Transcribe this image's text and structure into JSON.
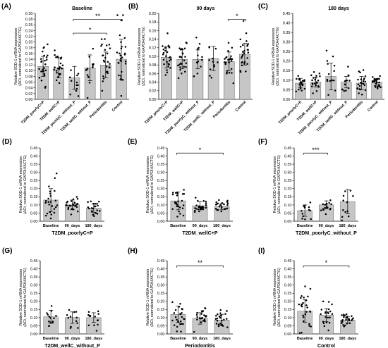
{
  "chart_data": [
    {
      "panel": "(A)",
      "title": "Baseline",
      "type": "bar",
      "ylabel": "Relative SOD-1 mRNA expression\n(ΔCt, normalized to GAPDH/ACTG)",
      "ylim": [
        0,
        0.3
      ],
      "yticks": [
        "0.00",
        "0.02",
        "0.04",
        "0.06",
        "0.08",
        "0.10",
        "0.12",
        "0.14",
        "0.16",
        "0.18",
        "0.20",
        "0.22",
        "0.24",
        "0.26",
        "0.28",
        "0.30"
      ],
      "categories": [
        "T2DM_poorlyC+P",
        "T2DM_wellC+P",
        "T2DM_poorlyC_without_P",
        "T2DM_wellC_without_P",
        "Periodontitis",
        "Control"
      ],
      "values": [
        0.115,
        0.11,
        0.075,
        0.11,
        0.12,
        0.14
      ],
      "errors": [
        0.035,
        0.035,
        0.04,
        0.045,
        0.045,
        0.07
      ],
      "n_points": [
        26,
        26,
        12,
        14,
        26,
        30
      ],
      "label_style": "rotated",
      "significance": [
        {
          "from": 2,
          "to": 5,
          "label": "**"
        },
        {
          "from": 2,
          "to": 4,
          "label": "*"
        }
      ]
    },
    {
      "panel": "(B)",
      "title": "90 days",
      "type": "bar",
      "ylabel": "Relative SOD-1 mRNA expression\n(ΔCt, normalized to GAPDH/ACTG)",
      "ylim": [
        0,
        0.2
      ],
      "yticks": [
        "0.00",
        "0.02",
        "0.04",
        "0.06",
        "0.08",
        "0.10",
        "0.12",
        "0.14",
        "0.16",
        "0.18",
        "0.20"
      ],
      "categories": [
        "T2DM_poorlyC+P",
        "T2DM_wellC+P",
        "T2DM_poorlyC_without_P",
        "T2DM_wellC_without_P",
        "Periodontitis",
        "Control"
      ],
      "values": [
        0.098,
        0.093,
        0.093,
        0.095,
        0.088,
        0.105
      ],
      "errors": [
        0.025,
        0.022,
        0.022,
        0.028,
        0.022,
        0.025
      ],
      "n_points": [
        26,
        26,
        14,
        12,
        26,
        28
      ],
      "label_style": "rotated",
      "significance": [
        {
          "from": 4,
          "to": 5,
          "label": "*"
        }
      ]
    },
    {
      "panel": "(C)",
      "title": "180 days",
      "type": "bar",
      "ylabel": "Relative SOD-1 mRNA expression\n(ΔCt, normalized to GAPDH/ACTG)",
      "ylim": [
        0,
        0.45
      ],
      "yticks": [
        "0.00",
        "0.05",
        "0.10",
        "0.15",
        "0.20",
        "0.25",
        "0.30",
        "0.35",
        "0.40",
        "0.45"
      ],
      "categories": [
        "T2DM_poorlyC+P",
        "T2DM_wellC+P",
        "T2DM_poorlyC_without_P",
        "T2DM_wellC_without_P",
        "Periodontitis",
        "Control"
      ],
      "values": [
        0.085,
        0.09,
        0.12,
        0.09,
        0.085,
        0.09
      ],
      "errors": [
        0.025,
        0.025,
        0.07,
        0.03,
        0.035,
        0.02
      ],
      "n_points": [
        24,
        22,
        14,
        14,
        24,
        26
      ],
      "label_style": "rotated",
      "significance": []
    },
    {
      "panel": "(D)",
      "title": "",
      "type": "bar",
      "ylabel": "Relative SOD-1 mRNA expression\n(ΔCt, normalized to GAPDH/ACTG)",
      "ylim": [
        0,
        0.45
      ],
      "yticks": [
        "0.00",
        "0.05",
        "0.10",
        "0.15",
        "0.20",
        "0.25",
        "0.30",
        "0.35",
        "0.40",
        "0.45"
      ],
      "categories": [
        "Baseline",
        "90_days",
        "180_days"
      ],
      "values": [
        0.13,
        0.1,
        0.08
      ],
      "errors": [
        0.07,
        0.03,
        0.025
      ],
      "n_points": [
        26,
        26,
        24
      ],
      "label_style": "flat",
      "group_label": "T2DM_poorlyC+P",
      "significance": []
    },
    {
      "panel": "(E)",
      "title": "",
      "type": "bar",
      "ylabel": "Relative SOD-1 mRNA expression\n(ΔCt, normalized to GAPDH/ACTG)",
      "ylim": [
        0,
        0.45
      ],
      "yticks": [
        "0.00",
        "0.05",
        "0.10",
        "0.15",
        "0.20",
        "0.25",
        "0.30",
        "0.35",
        "0.40",
        "0.45"
      ],
      "categories": [
        "Baseline",
        "90_days",
        "180_days"
      ],
      "values": [
        0.125,
        0.095,
        0.09
      ],
      "errors": [
        0.055,
        0.025,
        0.02
      ],
      "n_points": [
        26,
        26,
        22
      ],
      "label_style": "flat",
      "group_label": "T2DM_wellC+P",
      "significance": [
        {
          "from": 0,
          "to": 2,
          "label": "*"
        }
      ]
    },
    {
      "panel": "(F)",
      "title": "",
      "type": "bar",
      "ylabel": "Relative SOD-1 mRNA expression\n(ΔCt, normalized to GAPDH/ACTG)",
      "ylim": [
        0,
        0.45
      ],
      "yticks": [
        "0.00",
        "0.05",
        "0.10",
        "0.15",
        "0.20",
        "0.25",
        "0.30",
        "0.35",
        "0.40",
        "0.45"
      ],
      "categories": [
        "Baseline",
        "90_days",
        "180_days"
      ],
      "values": [
        0.065,
        0.1,
        0.12
      ],
      "errors": [
        0.035,
        0.025,
        0.075
      ],
      "n_points": [
        14,
        16,
        12
      ],
      "label_style": "flat",
      "group_label": "T2DM_poorlyC_without_P",
      "significance": [
        {
          "from": 0,
          "to": 1,
          "label": "***"
        }
      ]
    },
    {
      "panel": "(G)",
      "title": "",
      "type": "bar",
      "ylabel": "Relative SOD-1 mRNA expression\n(ΔCt, normalized to GAPDH/ACTG)",
      "ylim": [
        0,
        0.45
      ],
      "yticks": [
        "0.00",
        "0.05",
        "0.10",
        "0.15",
        "0.20",
        "0.25",
        "0.30",
        "0.35",
        "0.40",
        "0.45"
      ],
      "categories": [
        "Baseline",
        "90_days",
        "180_days"
      ],
      "values": [
        0.105,
        0.1,
        0.1
      ],
      "errors": [
        0.04,
        0.035,
        0.03
      ],
      "n_points": [
        14,
        12,
        14
      ],
      "label_style": "flat",
      "group_label": "T2DM_wellC_without_P",
      "significance": []
    },
    {
      "panel": "(H)",
      "title": "",
      "type": "bar",
      "ylabel": "Relative SOD-1 mRNA expression\n(ΔCt, normalized to GAPDH/ACTG)",
      "ylim": [
        0,
        0.45
      ],
      "yticks": [
        "0.00",
        "0.05",
        "0.10",
        "0.15",
        "0.20",
        "0.25",
        "0.30",
        "0.35",
        "0.40",
        "0.45"
      ],
      "categories": [
        "Baseline",
        "90_days",
        "180_days"
      ],
      "values": [
        0.12,
        0.095,
        0.085
      ],
      "errors": [
        0.05,
        0.035,
        0.035
      ],
      "n_points": [
        26,
        26,
        24
      ],
      "label_style": "flat",
      "group_label": "Periodontitis",
      "significance": [
        {
          "from": 0,
          "to": 2,
          "label": "**"
        }
      ]
    },
    {
      "panel": "(I)",
      "title": "",
      "type": "bar",
      "ylabel": "Relative SOD-1 mRNA expression\n(ΔCt, normalized to GAPDH/ACTG)",
      "ylim": [
        0,
        0.45
      ],
      "yticks": [
        "0.00",
        "0.05",
        "0.10",
        "0.15",
        "0.20",
        "0.25",
        "0.30",
        "0.35",
        "0.40",
        "0.45"
      ],
      "categories": [
        "Baseline",
        "90_days",
        "180_days"
      ],
      "values": [
        0.14,
        0.115,
        0.085
      ],
      "errors": [
        0.07,
        0.04,
        0.02
      ],
      "n_points": [
        26,
        22,
        26
      ],
      "label_style": "flat",
      "group_label": "Control",
      "significance": [
        {
          "from": 0,
          "to": 2,
          "label": "*"
        }
      ]
    }
  ]
}
